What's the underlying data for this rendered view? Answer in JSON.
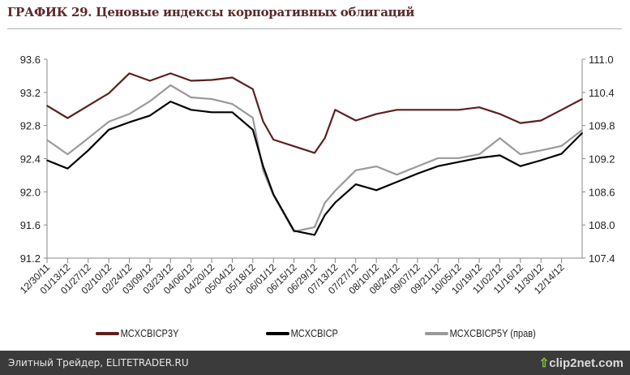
{
  "title": "ГРАФИК 29. Ценовые индексы корпоративных облигаций",
  "footer": {
    "text": "Элитный Трейдер, ELITETRADER.RU",
    "logo": "clip2net.com"
  },
  "chart_data": {
    "type": "line",
    "title": "ГРАФИК 29. Ценовые индексы корпоративных облигаций",
    "x": [
      "12/30/11",
      "01/13/12",
      "01/27/12",
      "02/10/12",
      "02/24/12",
      "03/09/12",
      "03/23/12",
      "04/06/12",
      "04/20/12",
      "05/04/12",
      "05/18/12",
      "05/25/12",
      "06/01/12",
      "06/15/12",
      "06/29/12",
      "07/06/12",
      "07/13/12",
      "07/27/12",
      "08/10/12",
      "08/24/12",
      "09/07/12",
      "09/21/12",
      "10/05/12",
      "10/19/12",
      "11/02/12",
      "11/16/12",
      "11/30/12",
      "12/14/12",
      "12/28/12"
    ],
    "x_tick_labels": [
      "12/30/11",
      "01/13/12",
      "01/27/12",
      "02/10/12",
      "02/24/12",
      "03/09/12",
      "03/23/12",
      "04/06/12",
      "04/20/12",
      "05/04/12",
      "05/18/12",
      "06/01/12",
      "06/15/12",
      "06/29/12",
      "07/13/12",
      "07/27/12",
      "08/10/12",
      "08/24/12",
      "09/07/12",
      "09/21/12",
      "10/05/12",
      "10/19/12",
      "11/02/12",
      "11/16/12",
      "11/30/12",
      "12/14/12"
    ],
    "y_left": {
      "range": [
        91.2,
        93.6
      ],
      "ticks": [
        "93.6",
        "93.2",
        "92.8",
        "92.4",
        "92.0",
        "91.6",
        "91.2"
      ]
    },
    "y_right": {
      "range": [
        107.4,
        111.0
      ],
      "ticks": [
        "111.0",
        "110.4",
        "109.8",
        "109.2",
        "108.6",
        "108.0",
        "107.4"
      ]
    },
    "grid": false,
    "legend_position": "bottom",
    "series": [
      {
        "name": "MCXCBICP3Y",
        "axis": "left",
        "color": "#5c1f1f",
        "values": [
          93.04,
          92.89,
          93.04,
          93.19,
          93.43,
          93.34,
          93.43,
          93.34,
          93.35,
          93.38,
          93.24,
          92.85,
          92.63,
          92.55,
          92.47,
          92.65,
          92.99,
          92.86,
          92.94,
          92.99,
          92.99,
          92.99,
          92.99,
          93.02,
          92.94,
          92.83,
          92.86,
          92.99,
          93.12
        ]
      },
      {
        "name": "MCXCBICP",
        "axis": "left",
        "color": "#000000",
        "values": [
          92.38,
          92.28,
          92.5,
          92.75,
          92.84,
          92.92,
          93.09,
          92.99,
          92.96,
          92.96,
          92.75,
          92.31,
          91.97,
          91.53,
          91.48,
          91.72,
          91.87,
          92.09,
          92.02,
          92.12,
          92.22,
          92.31,
          92.36,
          92.41,
          92.44,
          92.31,
          92.38,
          92.46,
          92.71
        ]
      },
      {
        "name": "MCXCBICP5Y (прав)",
        "axis": "right",
        "color": "#9a9a9a",
        "values": [
          109.54,
          109.28,
          109.57,
          109.87,
          110.01,
          110.24,
          110.53,
          110.31,
          110.28,
          110.19,
          109.94,
          108.99,
          108.54,
          107.88,
          107.96,
          108.4,
          108.62,
          108.99,
          109.06,
          108.91,
          109.06,
          109.21,
          109.21,
          109.28,
          109.57,
          109.28,
          109.35,
          109.43,
          109.72
        ]
      }
    ]
  }
}
